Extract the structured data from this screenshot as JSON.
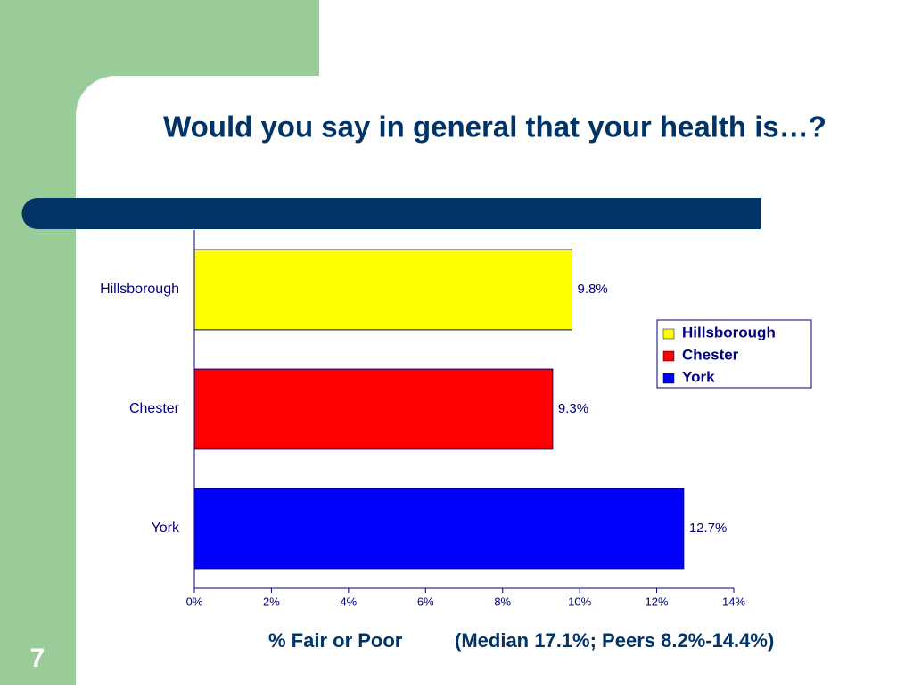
{
  "slide_number": "7",
  "chart_data": {
    "type": "bar",
    "orientation": "horizontal",
    "title": "Would you say in general that your health is…?",
    "categories": [
      "Hillsborough",
      "Chester",
      "York"
    ],
    "values": [
      9.8,
      9.3,
      12.7
    ],
    "value_labels": [
      "9.8%",
      "9.3%",
      "12.7%"
    ],
    "colors": [
      "#ffff00",
      "#ff0000",
      "#0000ff"
    ],
    "xlim": [
      0,
      14
    ],
    "xticks": [
      {
        "value": 0,
        "label": "0%"
      },
      {
        "value": 2,
        "label": "2%"
      },
      {
        "value": 4,
        "label": "4%"
      },
      {
        "value": 6,
        "label": "6%"
      },
      {
        "value": 8,
        "label": "8%"
      },
      {
        "value": 10,
        "label": "10%"
      },
      {
        "value": 12,
        "label": "12%"
      },
      {
        "value": 14,
        "label": "14%"
      }
    ],
    "xlabel": "% Fair or Poor",
    "xlabel_note": "(Median 17.1%; Peers 8.2%-14.4%)",
    "legend": "right"
  }
}
